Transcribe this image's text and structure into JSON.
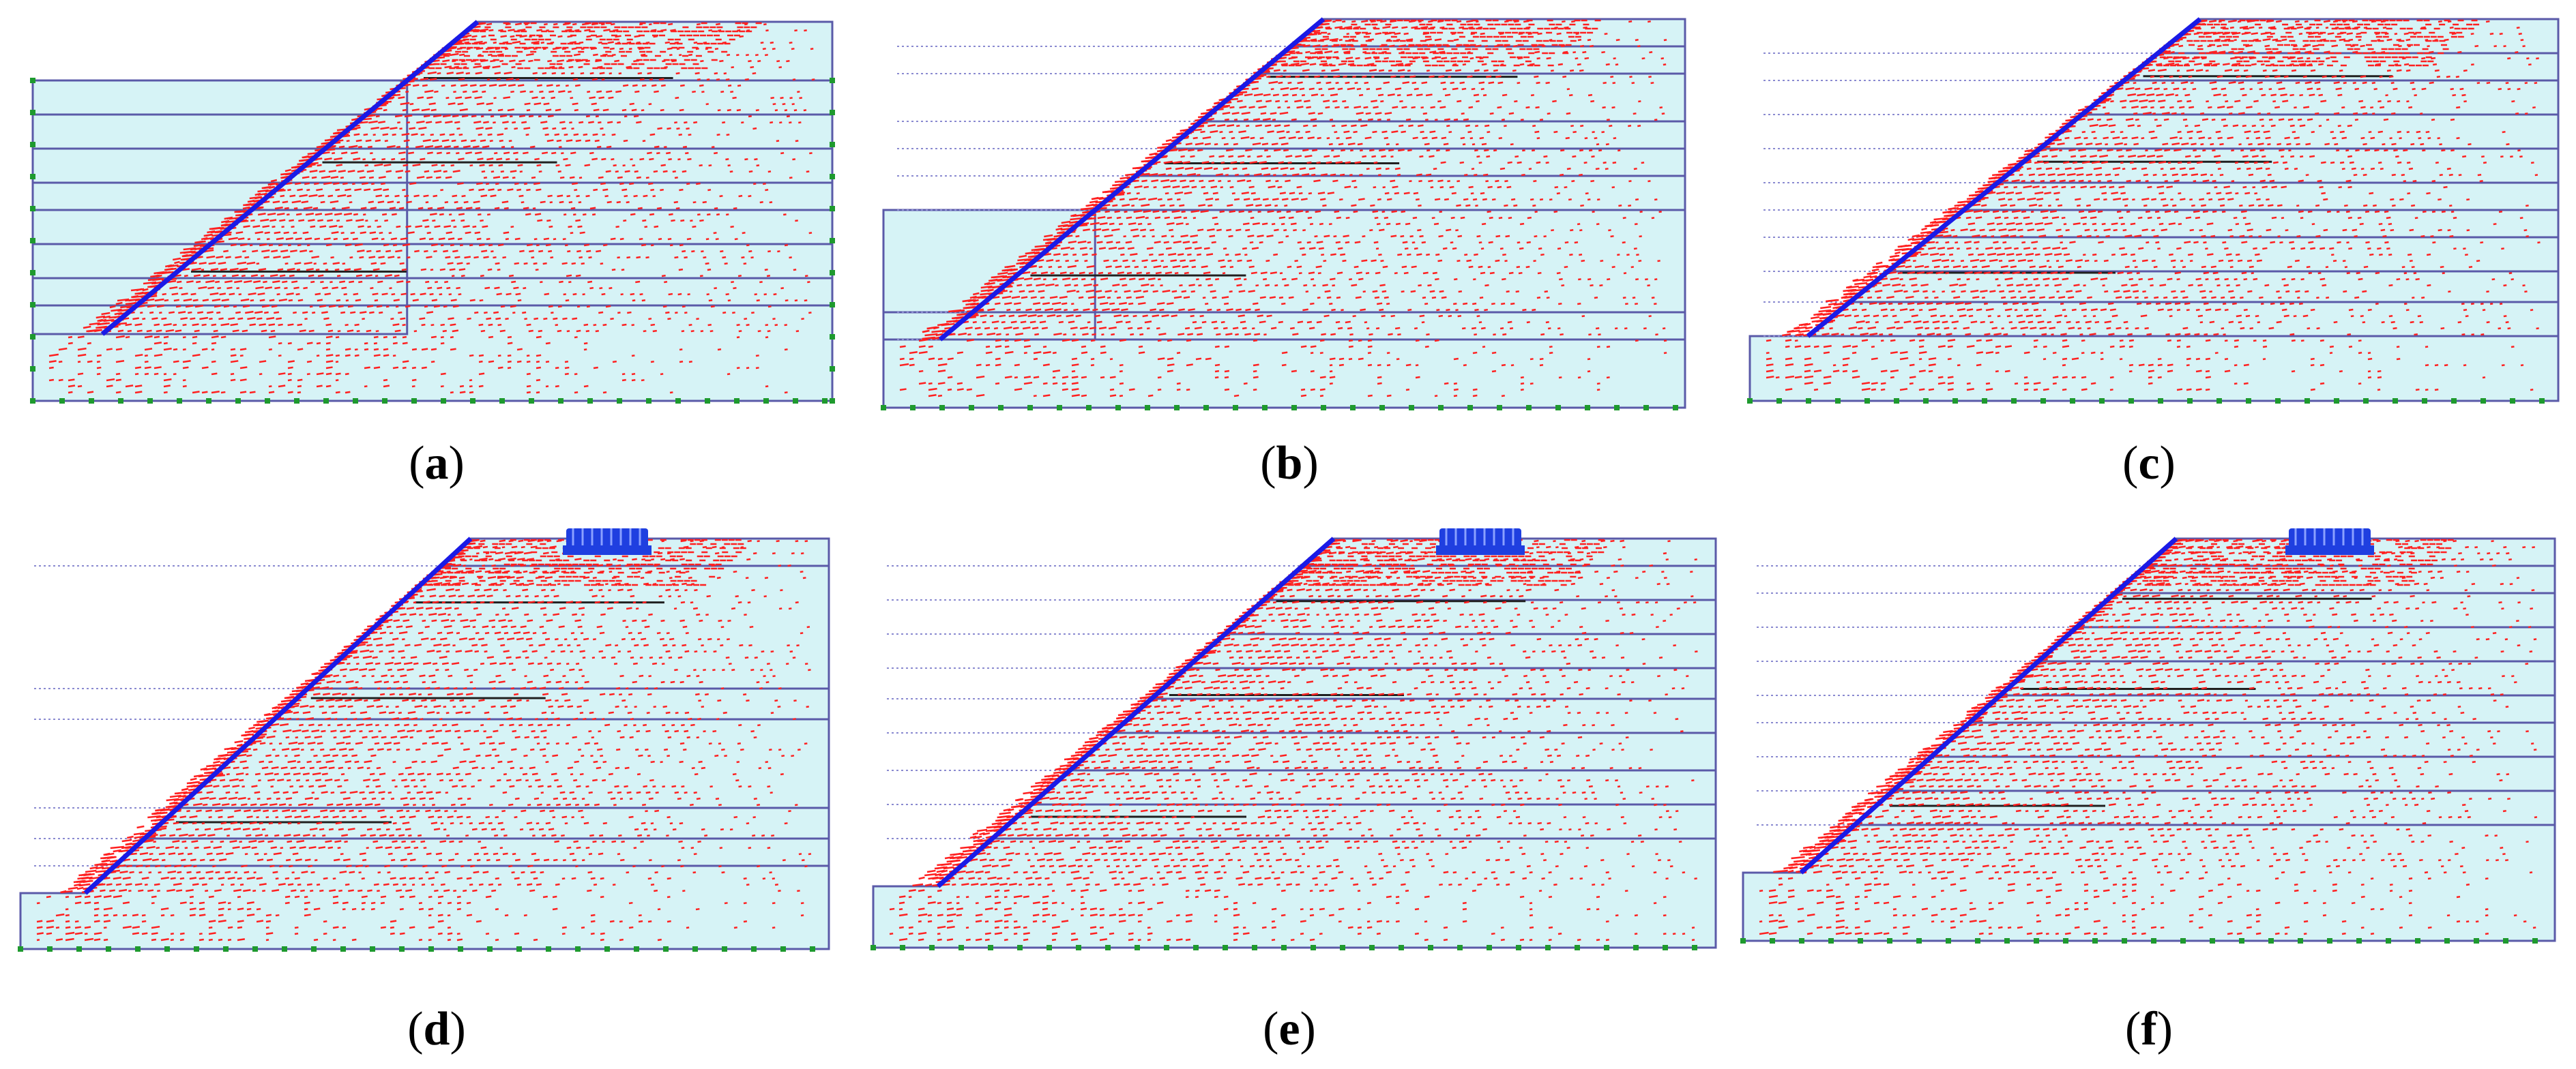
{
  "figure": {
    "panels": [
      {
        "id": "a",
        "label_open": "(",
        "label_letter": "a",
        "label_close": ")",
        "has_load": false
      },
      {
        "id": "b",
        "label_open": "(",
        "label_letter": "b",
        "label_close": ")",
        "has_load": false
      },
      {
        "id": "c",
        "label_open": "(",
        "label_letter": "c",
        "label_close": ")",
        "has_load": false
      },
      {
        "id": "d",
        "label_open": "(",
        "label_letter": "d",
        "label_close": ")",
        "has_load": true
      },
      {
        "id": "e",
        "label_open": "(",
        "label_letter": "e",
        "label_close": ")",
        "has_load": true
      },
      {
        "id": "f",
        "label_open": "(",
        "label_letter": "f",
        "label_close": ")",
        "has_load": true
      }
    ],
    "colors": {
      "soil_fill": "#d6f3f6",
      "layer_line": "#5a5aa8",
      "slope_line": "#1a1ae6",
      "displacement_vector": "#ff2020",
      "node_marker": "#1e9a2e",
      "load_block": "#1f3fe0",
      "reinforcement": "#202020"
    }
  }
}
